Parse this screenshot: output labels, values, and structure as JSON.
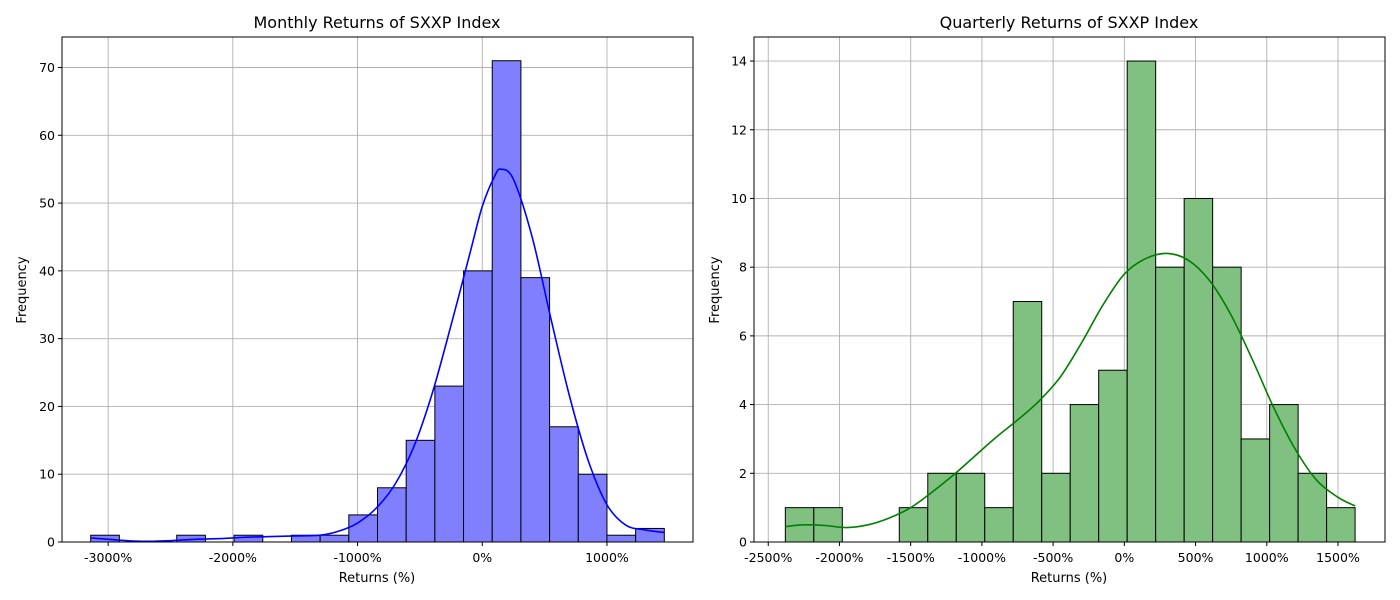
{
  "chart_data": [
    {
      "type": "bar",
      "subtype": "histogram-with-kde",
      "title": "Monthly Returns of SXXP Index",
      "xlabel": "Returns (%)",
      "ylabel": "Frequency",
      "xlim": [
        -3370,
        1690
      ],
      "ylim": [
        0,
        74.5
      ],
      "grid": true,
      "legend": "none",
      "bar_color": "#8080ff",
      "line_color": "#0000ff",
      "x_ticks": [
        {
          "value": -3000,
          "label": "-3000%"
        },
        {
          "value": -2000,
          "label": "-2000%"
        },
        {
          "value": -1000,
          "label": "-1000%"
        },
        {
          "value": 0,
          "label": "0%"
        },
        {
          "value": 1000,
          "label": "1000%"
        }
      ],
      "y_ticks": [
        {
          "value": 0,
          "label": "0"
        },
        {
          "value": 10,
          "label": "10"
        },
        {
          "value": 20,
          "label": "20"
        },
        {
          "value": 30,
          "label": "30"
        },
        {
          "value": 40,
          "label": "40"
        },
        {
          "value": 50,
          "label": "50"
        },
        {
          "value": 60,
          "label": "60"
        },
        {
          "value": 70,
          "label": "70"
        }
      ],
      "bins": [
        {
          "x0": -3140,
          "x1": -2910,
          "count": 1
        },
        {
          "x0": -2910,
          "x1": -2680,
          "count": 0
        },
        {
          "x0": -2680,
          "x1": -2450,
          "count": 0
        },
        {
          "x0": -2450,
          "x1": -2220,
          "count": 1
        },
        {
          "x0": -2220,
          "x1": -1990,
          "count": 0
        },
        {
          "x0": -1990,
          "x1": -1760,
          "count": 1
        },
        {
          "x0": -1760,
          "x1": -1530,
          "count": 0
        },
        {
          "x0": -1530,
          "x1": -1300,
          "count": 1
        },
        {
          "x0": -1300,
          "x1": -1070,
          "count": 1
        },
        {
          "x0": -1070,
          "x1": -840,
          "count": 4
        },
        {
          "x0": -840,
          "x1": -610,
          "count": 8
        },
        {
          "x0": -610,
          "x1": -380,
          "count": 15
        },
        {
          "x0": -380,
          "x1": -150,
          "count": 23
        },
        {
          "x0": -150,
          "x1": 80,
          "count": 40
        },
        {
          "x0": 80,
          "x1": 310,
          "count": 71
        },
        {
          "x0": 310,
          "x1": 540,
          "count": 39
        },
        {
          "x0": 540,
          "x1": 770,
          "count": 17
        },
        {
          "x0": 770,
          "x1": 1000,
          "count": 10
        },
        {
          "x0": 1000,
          "x1": 1230,
          "count": 1
        },
        {
          "x0": 1230,
          "x1": 1460,
          "count": 2
        }
      ],
      "kde": [
        [
          -3140,
          0.6
        ],
        [
          -3000,
          0.4
        ],
        [
          -2850,
          0.2
        ],
        [
          -2700,
          0.1
        ],
        [
          -2500,
          0.2
        ],
        [
          -2300,
          0.4
        ],
        [
          -2100,
          0.5
        ],
        [
          -1900,
          0.7
        ],
        [
          -1700,
          0.8
        ],
        [
          -1500,
          0.9
        ],
        [
          -1300,
          1.0
        ],
        [
          -1150,
          1.6
        ],
        [
          -1000,
          2.8
        ],
        [
          -850,
          5.0
        ],
        [
          -700,
          8.5
        ],
        [
          -550,
          14.0
        ],
        [
          -400,
          22.0
        ],
        [
          -250,
          32.0
        ],
        [
          -100,
          42.5
        ],
        [
          0,
          49.5
        ],
        [
          100,
          54.0
        ],
        [
          150,
          55.0
        ],
        [
          250,
          53.5
        ],
        [
          400,
          45.0
        ],
        [
          550,
          33.0
        ],
        [
          700,
          21.5
        ],
        [
          850,
          12.0
        ],
        [
          1000,
          5.5
        ],
        [
          1150,
          2.5
        ],
        [
          1300,
          1.8
        ],
        [
          1460,
          1.4
        ]
      ]
    },
    {
      "type": "bar",
      "subtype": "histogram-with-kde",
      "title": "Quarterly Returns of SXXP Index",
      "xlabel": "Returns (%)",
      "ylabel": "Frequency",
      "xlim": [
        -2600,
        1830
      ],
      "ylim": [
        0,
        14.7
      ],
      "grid": true,
      "legend": "none",
      "bar_color": "#80c080",
      "line_color": "#008000",
      "x_ticks": [
        {
          "value": -2500,
          "label": "-2500%"
        },
        {
          "value": -2000,
          "label": "-2000%"
        },
        {
          "value": -1500,
          "label": "-1500%"
        },
        {
          "value": -1000,
          "label": "-1000%"
        },
        {
          "value": -500,
          "label": "-500%"
        },
        {
          "value": 0,
          "label": "0%"
        },
        {
          "value": 500,
          "label": "500%"
        },
        {
          "value": 1000,
          "label": "1000%"
        },
        {
          "value": 1500,
          "label": "1500%"
        }
      ],
      "y_ticks": [
        {
          "value": 0,
          "label": "0"
        },
        {
          "value": 2,
          "label": "2"
        },
        {
          "value": 4,
          "label": "4"
        },
        {
          "value": 6,
          "label": "6"
        },
        {
          "value": 8,
          "label": "8"
        },
        {
          "value": 10,
          "label": "10"
        },
        {
          "value": 12,
          "label": "12"
        },
        {
          "value": 14,
          "label": "14"
        }
      ],
      "bins": [
        {
          "x0": -2380,
          "x1": -2180,
          "count": 1
        },
        {
          "x0": -2180,
          "x1": -1980,
          "count": 1
        },
        {
          "x0": -1980,
          "x1": -1780,
          "count": 0
        },
        {
          "x0": -1780,
          "x1": -1580,
          "count": 0
        },
        {
          "x0": -1580,
          "x1": -1380,
          "count": 1
        },
        {
          "x0": -1380,
          "x1": -1180,
          "count": 2
        },
        {
          "x0": -1180,
          "x1": -980,
          "count": 2
        },
        {
          "x0": -980,
          "x1": -780,
          "count": 1
        },
        {
          "x0": -780,
          "x1": -580,
          "count": 7
        },
        {
          "x0": -580,
          "x1": -380,
          "count": 2
        },
        {
          "x0": -380,
          "x1": -180,
          "count": 4
        },
        {
          "x0": -180,
          "x1": 20,
          "count": 5
        },
        {
          "x0": 20,
          "x1": 220,
          "count": 14
        },
        {
          "x0": 220,
          "x1": 420,
          "count": 8
        },
        {
          "x0": 420,
          "x1": 620,
          "count": 10
        },
        {
          "x0": 620,
          "x1": 820,
          "count": 8
        },
        {
          "x0": 820,
          "x1": 1020,
          "count": 3
        },
        {
          "x0": 1020,
          "x1": 1220,
          "count": 4
        },
        {
          "x0": 1220,
          "x1": 1420,
          "count": 2
        },
        {
          "x0": 1420,
          "x1": 1620,
          "count": 1
        }
      ],
      "kde": [
        [
          -2380,
          0.45
        ],
        [
          -2250,
          0.5
        ],
        [
          -2100,
          0.48
        ],
        [
          -1950,
          0.42
        ],
        [
          -1800,
          0.5
        ],
        [
          -1650,
          0.7
        ],
        [
          -1500,
          1.0
        ],
        [
          -1350,
          1.45
        ],
        [
          -1200,
          1.95
        ],
        [
          -1050,
          2.5
        ],
        [
          -900,
          3.05
        ],
        [
          -750,
          3.55
        ],
        [
          -600,
          4.1
        ],
        [
          -450,
          4.8
        ],
        [
          -300,
          5.8
        ],
        [
          -150,
          6.9
        ],
        [
          0,
          7.8
        ],
        [
          150,
          8.25
        ],
        [
          300,
          8.4
        ],
        [
          450,
          8.2
        ],
        [
          600,
          7.6
        ],
        [
          750,
          6.6
        ],
        [
          900,
          5.3
        ],
        [
          1050,
          3.9
        ],
        [
          1200,
          2.7
        ],
        [
          1350,
          1.8
        ],
        [
          1500,
          1.3
        ],
        [
          1620,
          1.05
        ]
      ]
    }
  ]
}
